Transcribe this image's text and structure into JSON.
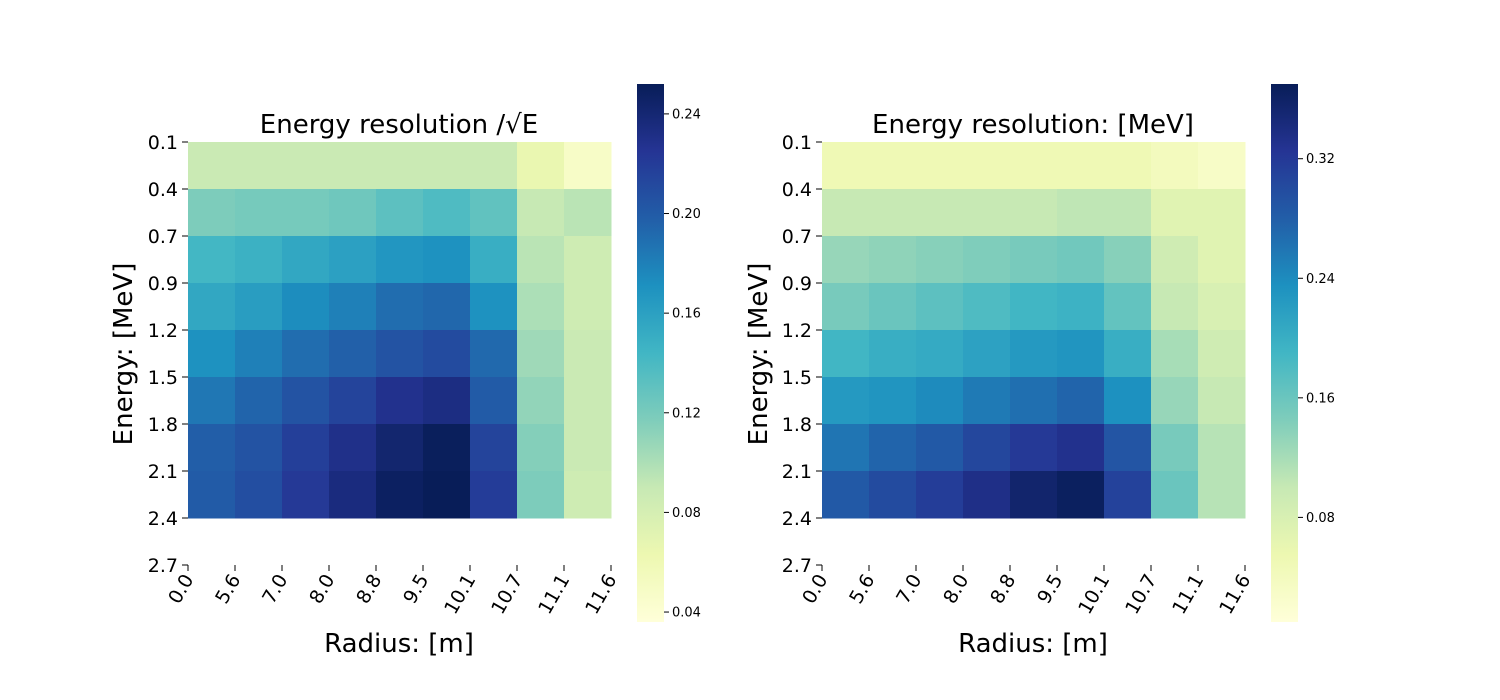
{
  "chart_data": [
    {
      "type": "heatmap",
      "title": "Energy resolution /√E",
      "xlabel": "Radius: [m]",
      "ylabel": "Energy: [MeV]",
      "x_ticks": [
        "0.0",
        "5.6",
        "7.0",
        "8.0",
        "8.8",
        "9.5",
        "10.1",
        "10.7",
        "11.1",
        "11.6"
      ],
      "y_ticks": [
        "0.1",
        "0.4",
        "0.7",
        "0.9",
        "1.2",
        "1.5",
        "1.8",
        "2.1",
        "2.4",
        "2.7"
      ],
      "colorbar": {
        "min": 0.036,
        "max": 0.252,
        "ticks": [
          "0.04",
          "0.08",
          "0.12",
          "0.16",
          "0.20",
          "0.24"
        ],
        "tick_values": [
          0.04,
          0.08,
          0.12,
          0.16,
          0.2,
          0.24
        ]
      },
      "values": [
        [
          0.088,
          0.088,
          0.088,
          0.088,
          0.088,
          0.088,
          0.088,
          0.065,
          0.048
        ],
        [
          0.118,
          0.121,
          0.121,
          0.124,
          0.132,
          0.138,
          0.13,
          0.09,
          0.095
        ],
        [
          0.143,
          0.148,
          0.155,
          0.16,
          0.167,
          0.17,
          0.15,
          0.095,
          0.085
        ],
        [
          0.155,
          0.162,
          0.173,
          0.18,
          0.19,
          0.193,
          0.17,
          0.1,
          0.085
        ],
        [
          0.17,
          0.18,
          0.19,
          0.197,
          0.205,
          0.21,
          0.192,
          0.105,
          0.088
        ],
        [
          0.185,
          0.195,
          0.205,
          0.215,
          0.228,
          0.233,
          0.2,
          0.11,
          0.088
        ],
        [
          0.198,
          0.205,
          0.218,
          0.23,
          0.242,
          0.25,
          0.215,
          0.115,
          0.088
        ],
        [
          0.2,
          0.208,
          0.222,
          0.235,
          0.248,
          0.252,
          0.22,
          0.118,
          0.085
        ]
      ]
    },
    {
      "type": "heatmap",
      "title": "Energy resolution: [MeV]",
      "xlabel": "Radius: [m]",
      "ylabel": "Energy: [MeV]",
      "x_ticks": [
        "0.0",
        "5.6",
        "7.0",
        "8.0",
        "8.8",
        "9.5",
        "10.1",
        "10.7",
        "11.1",
        "11.6"
      ],
      "y_ticks": [
        "0.1",
        "0.4",
        "0.7",
        "0.9",
        "1.2",
        "1.5",
        "1.8",
        "2.1",
        "2.4",
        "2.7"
      ],
      "colorbar": {
        "min": 0.01,
        "max": 0.37,
        "ticks": [
          "0.08",
          "0.16",
          "0.24",
          "0.32"
        ],
        "tick_values": [
          0.08,
          0.16,
          0.24,
          0.32
        ]
      },
      "values": [
        [
          0.05,
          0.05,
          0.05,
          0.05,
          0.05,
          0.05,
          0.05,
          0.04,
          0.03
        ],
        [
          0.1,
          0.1,
          0.1,
          0.1,
          0.1,
          0.105,
          0.105,
          0.07,
          0.07
        ],
        [
          0.13,
          0.135,
          0.14,
          0.145,
          0.15,
          0.155,
          0.14,
          0.09,
          0.07
        ],
        [
          0.15,
          0.16,
          0.17,
          0.18,
          0.19,
          0.195,
          0.165,
          0.1,
          0.08
        ],
        [
          0.19,
          0.2,
          0.205,
          0.215,
          0.225,
          0.23,
          0.2,
          0.12,
          0.09
        ],
        [
          0.225,
          0.23,
          0.24,
          0.255,
          0.265,
          0.275,
          0.235,
          0.13,
          0.1
        ],
        [
          0.26,
          0.275,
          0.285,
          0.305,
          0.32,
          0.33,
          0.29,
          0.15,
          0.11
        ],
        [
          0.285,
          0.3,
          0.315,
          0.335,
          0.355,
          0.365,
          0.31,
          0.16,
          0.11
        ]
      ]
    }
  ],
  "colors": {
    "colormap": [
      "#ffffd9",
      "#edf8b1",
      "#c7e9b4",
      "#7fcdbb",
      "#41b6c4",
      "#1d91c0",
      "#225ea8",
      "#253494",
      "#081d58"
    ]
  }
}
